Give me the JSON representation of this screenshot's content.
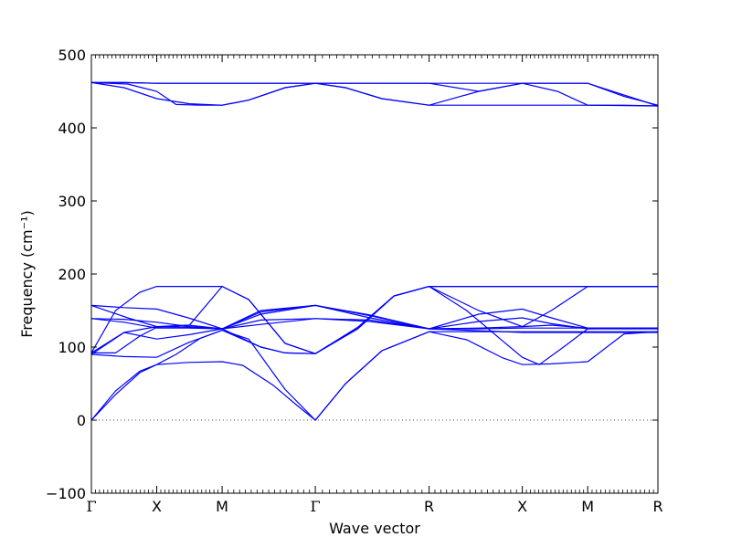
{
  "chart_data": {
    "type": "line",
    "title": "",
    "xlabel": "Wave vector",
    "ylabel": "Frequency (cm⁻¹)",
    "ylim": [
      -100,
      500
    ],
    "yticks": [
      -100,
      0,
      100,
      200,
      300,
      400,
      500
    ],
    "ytick_labels": [
      "−100",
      "0",
      "100",
      "200",
      "300",
      "400",
      "500"
    ],
    "xlim": [
      0,
      4.68
    ],
    "high_symmetry_points": [
      {
        "label": "Γ",
        "x": 0
      },
      {
        "label": "X",
        "x": 0.54
      },
      {
        "label": "M",
        "x": 1.08
      },
      {
        "label": "Γ",
        "x": 1.85
      },
      {
        "label": "R",
        "x": 2.79
      },
      {
        "label": "X",
        "x": 3.56
      },
      {
        "label": "M",
        "x": 4.1
      },
      {
        "label": "R",
        "x": 4.68
      }
    ],
    "zero_line": {
      "y": 0,
      "style": "dotted"
    },
    "line_color": "#0000ff",
    "series": [
      {
        "points": [
          [
            0,
            462
          ],
          [
            0.27,
            462
          ],
          [
            0.54,
            461
          ],
          [
            1.08,
            461
          ],
          [
            1.85,
            461
          ],
          [
            2.79,
            461
          ],
          [
            3.56,
            461
          ],
          [
            4.1,
            461
          ],
          [
            4.68,
            430
          ]
        ]
      },
      {
        "points": [
          [
            0,
            462
          ],
          [
            0.27,
            455
          ],
          [
            0.54,
            440
          ],
          [
            0.81,
            433
          ],
          [
            1.08,
            431
          ],
          [
            1.3,
            438
          ],
          [
            1.6,
            455
          ],
          [
            1.85,
            461
          ],
          [
            2.1,
            455
          ],
          [
            2.4,
            440
          ],
          [
            2.79,
            431
          ],
          [
            3.2,
            450
          ],
          [
            3.56,
            461
          ],
          [
            3.85,
            450
          ],
          [
            4.1,
            431
          ],
          [
            4.4,
            431
          ],
          [
            4.68,
            430
          ]
        ]
      },
      {
        "points": [
          [
            0,
            462
          ],
          [
            0.3,
            460
          ],
          [
            0.54,
            450
          ],
          [
            0.7,
            432
          ],
          [
            0.9,
            431
          ],
          [
            1.08,
            431
          ],
          [
            1.3,
            438
          ],
          [
            1.6,
            455
          ],
          [
            1.85,
            461
          ],
          [
            2.1,
            455
          ],
          [
            2.4,
            440
          ],
          [
            2.79,
            431
          ],
          [
            3.56,
            431
          ],
          [
            4.1,
            431
          ],
          [
            4.68,
            430
          ]
        ]
      },
      {
        "points": [
          [
            0,
            462
          ],
          [
            0.27,
            462
          ],
          [
            0.54,
            461
          ],
          [
            1.08,
            461
          ],
          [
            1.85,
            461
          ],
          [
            2.79,
            461
          ],
          [
            3.2,
            450
          ],
          [
            3.56,
            461
          ],
          [
            3.8,
            461
          ],
          [
            4.1,
            461
          ],
          [
            4.4,
            443
          ],
          [
            4.68,
            431
          ]
        ]
      },
      {
        "points": [
          [
            0,
            0
          ],
          [
            0.2,
            40
          ],
          [
            0.4,
            67
          ],
          [
            0.54,
            76
          ],
          [
            0.8,
            79
          ],
          [
            1.08,
            80
          ],
          [
            1.25,
            75
          ],
          [
            1.5,
            48
          ],
          [
            1.7,
            20
          ],
          [
            1.85,
            0
          ],
          [
            2.1,
            50
          ],
          [
            2.4,
            95
          ],
          [
            2.79,
            121
          ],
          [
            3.56,
            121
          ],
          [
            4.1,
            121
          ],
          [
            4.68,
            121
          ]
        ]
      },
      {
        "points": [
          [
            0,
            0
          ],
          [
            0.2,
            35
          ],
          [
            0.4,
            65
          ],
          [
            0.54,
            76
          ],
          [
            0.7,
            90
          ],
          [
            0.9,
            112
          ],
          [
            1.08,
            123
          ],
          [
            1.3,
            111
          ],
          [
            1.6,
            42
          ],
          [
            1.85,
            0
          ],
          [
            2.1,
            50
          ],
          [
            2.4,
            95
          ],
          [
            2.79,
            121
          ],
          [
            3.1,
            110
          ],
          [
            3.4,
            85
          ],
          [
            3.56,
            76
          ],
          [
            3.8,
            77
          ],
          [
            4.1,
            80
          ],
          [
            4.4,
            118
          ],
          [
            4.68,
            121
          ]
        ]
      },
      {
        "points": [
          [
            0,
            90
          ],
          [
            0.27,
            87
          ],
          [
            0.54,
            86
          ],
          [
            0.8,
            106
          ],
          [
            1.08,
            123
          ],
          [
            1.4,
            100
          ],
          [
            1.6,
            92
          ],
          [
            1.85,
            91
          ],
          [
            2.2,
            125
          ],
          [
            2.5,
            170
          ],
          [
            2.79,
            183
          ],
          [
            3.1,
            150
          ],
          [
            3.4,
            108
          ],
          [
            3.56,
            86
          ],
          [
            3.7,
            76
          ],
          [
            3.9,
            100
          ],
          [
            4.1,
            125
          ],
          [
            4.4,
            125
          ],
          [
            4.68,
            125
          ]
        ]
      },
      {
        "points": [
          [
            0,
            90
          ],
          [
            0.27,
            120
          ],
          [
            0.54,
            111
          ],
          [
            0.81,
            117
          ],
          [
            1.08,
            125
          ],
          [
            1.4,
            100
          ],
          [
            1.6,
            92
          ],
          [
            1.85,
            91
          ],
          [
            2.2,
            125
          ],
          [
            2.5,
            170
          ],
          [
            2.79,
            183
          ],
          [
            3.56,
            183
          ],
          [
            4.1,
            183
          ],
          [
            4.68,
            183
          ]
        ]
      },
      {
        "points": [
          [
            0,
            139
          ],
          [
            0.27,
            138
          ],
          [
            0.54,
            134
          ],
          [
            0.81,
            128
          ],
          [
            1.08,
            125
          ],
          [
            1.4,
            137
          ],
          [
            1.85,
            139
          ],
          [
            2.3,
            135
          ],
          [
            2.79,
            125
          ],
          [
            3.2,
            125
          ],
          [
            3.56,
            126
          ],
          [
            4.1,
            126
          ],
          [
            4.68,
            126
          ]
        ]
      },
      {
        "points": [
          [
            0,
            139
          ],
          [
            0.27,
            134
          ],
          [
            0.54,
            126
          ],
          [
            0.8,
            126
          ],
          [
            1.08,
            125
          ],
          [
            1.4,
            131
          ],
          [
            1.85,
            139
          ],
          [
            2.3,
            137
          ],
          [
            2.79,
            125
          ],
          [
            3.2,
            135
          ],
          [
            3.56,
            140
          ],
          [
            3.8,
            132
          ],
          [
            4.1,
            125
          ],
          [
            4.68,
            126
          ]
        ]
      },
      {
        "points": [
          [
            0,
            157
          ],
          [
            0.27,
            154
          ],
          [
            0.54,
            152
          ],
          [
            0.8,
            140
          ],
          [
            1.08,
            125
          ],
          [
            1.4,
            148
          ],
          [
            1.85,
            157
          ],
          [
            2.3,
            144
          ],
          [
            2.79,
            125
          ],
          [
            3.2,
            145
          ],
          [
            3.56,
            152
          ],
          [
            3.8,
            140
          ],
          [
            4.1,
            126
          ],
          [
            4.68,
            126
          ]
        ]
      },
      {
        "points": [
          [
            0,
            157
          ],
          [
            0.3,
            140
          ],
          [
            0.54,
            128
          ],
          [
            0.8,
            130
          ],
          [
            1.08,
            125
          ],
          [
            1.4,
            150
          ],
          [
            1.85,
            157
          ],
          [
            2.3,
            143
          ],
          [
            2.79,
            125
          ],
          [
            3.2,
            126
          ],
          [
            3.56,
            128
          ],
          [
            3.8,
            130
          ],
          [
            4.1,
            126
          ],
          [
            4.68,
            126
          ]
        ]
      },
      {
        "points": [
          [
            0,
            92
          ],
          [
            0.2,
            150
          ],
          [
            0.4,
            175
          ],
          [
            0.54,
            183
          ],
          [
            0.81,
            183
          ],
          [
            1.08,
            183
          ],
          [
            1.3,
            165
          ],
          [
            1.6,
            105
          ],
          [
            1.85,
            91
          ],
          [
            2.2,
            127
          ],
          [
            2.5,
            170
          ],
          [
            2.79,
            183
          ],
          [
            3.56,
            183
          ],
          [
            4.1,
            183
          ],
          [
            4.68,
            183
          ]
        ]
      },
      {
        "points": [
          [
            0,
            92
          ],
          [
            0.2,
            92
          ],
          [
            0.4,
            115
          ],
          [
            0.54,
            127
          ],
          [
            0.81,
            130
          ],
          [
            1.08,
            183
          ],
          [
            1.3,
            165
          ],
          [
            1.6,
            105
          ],
          [
            1.85,
            91
          ],
          [
            2.2,
            127
          ],
          [
            2.5,
            170
          ],
          [
            2.79,
            183
          ],
          [
            3.2,
            150
          ],
          [
            3.56,
            128
          ],
          [
            3.8,
            150
          ],
          [
            4.1,
            183
          ],
          [
            4.68,
            183
          ]
        ]
      },
      {
        "points": [
          [
            0,
            92
          ],
          [
            0.27,
            120
          ],
          [
            0.54,
            128
          ],
          [
            0.81,
            127
          ],
          [
            1.08,
            125
          ],
          [
            1.4,
            145
          ],
          [
            1.85,
            157
          ],
          [
            2.3,
            140
          ],
          [
            2.79,
            125
          ],
          [
            3.56,
            120
          ],
          [
            4.1,
            120
          ],
          [
            4.68,
            120
          ]
        ]
      }
    ]
  }
}
